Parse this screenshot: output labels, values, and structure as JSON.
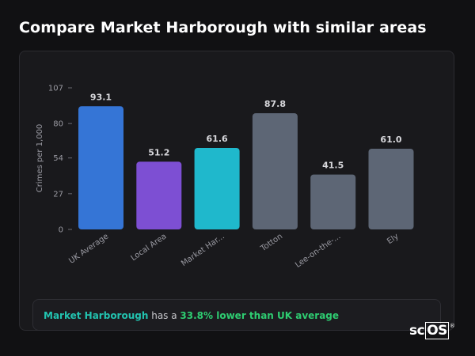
{
  "page": {
    "title": "Compare Market Harborough with similar areas"
  },
  "chart_data": {
    "type": "bar",
    "ylabel": "Crimes per 1,000",
    "xlabel": "",
    "ylim": [
      0,
      107
    ],
    "y_ticks": [
      0,
      27,
      54,
      80,
      107
    ],
    "categories": [
      "UK Average",
      "Local Area",
      "Market Har...",
      "Totton",
      "Lee-on-the-...",
      "Ely"
    ],
    "values": [
      93.1,
      51.2,
      61.6,
      87.8,
      41.5,
      61.0
    ],
    "value_labels": [
      "93.1",
      "51.2",
      "61.6",
      "87.8",
      "41.5",
      "61.0"
    ],
    "colors": [
      "#3575d6",
      "#7d4fd3",
      "#1fb8cc",
      "#5d6675",
      "#5d6675",
      "#5d6675"
    ],
    "grid": false,
    "legend": "none"
  },
  "callout": {
    "area_name": "Market Harborough",
    "text_middle": " has a ",
    "difference": "33.8% lower than UK average"
  },
  "branding": {
    "logo_prefix": "sc",
    "logo_boxed": "OS",
    "logo_mark": "®"
  }
}
